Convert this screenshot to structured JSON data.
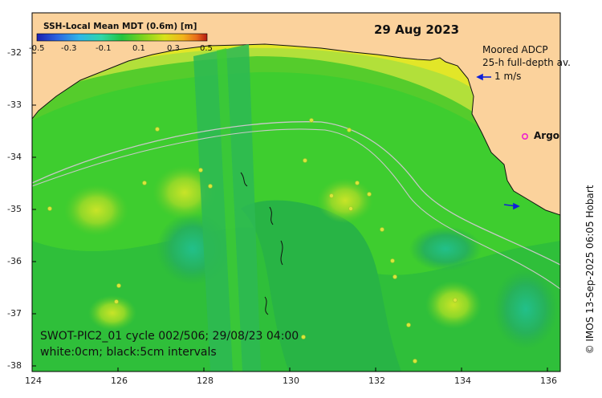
{
  "map": {
    "date": "29 Aug 2023",
    "colorbar": {
      "title": "SSH-Local Mean MDT (0.6m) [m]",
      "tick_labels": [
        "-0.5",
        "-0.3",
        "-0.1",
        "0.1",
        "0.3",
        "0.5"
      ],
      "colors": [
        "#1b1fb0",
        "#2b64e0",
        "#2fb6e8",
        "#2fd6a8",
        "#22c43e",
        "#7cd21e",
        "#d8e21a",
        "#f2b21a",
        "#e86a1a",
        "#b41a12"
      ]
    },
    "legend": {
      "adcp_title": "Moored ADCP",
      "adcp_subtitle": "25-h full-depth av.",
      "arrow_label": "1 m/s",
      "argo_symbol": "o",
      "argo_label": "Argo"
    },
    "annotation_line1": "SWOT-PIC2_01 cycle 002/506; 29/08/23 04:00",
    "annotation_line2": "white:0cm; black:5cm intervals",
    "copyright": "© IMOS 13-Sep-2025 06:05 Hobart",
    "x_ticks": [
      "124",
      "126",
      "128",
      "130",
      "132",
      "134",
      "136"
    ],
    "y_ticks": [
      "-32",
      "-33",
      "-34",
      "-35",
      "-36",
      "-37",
      "-38"
    ],
    "lon_range": [
      124,
      136.8
    ],
    "lat_range": [
      -38.2,
      -31.3
    ],
    "colors": {
      "land": "#fbd29c",
      "ocean_mid": "#3ecd2f",
      "ocean_dark": "#27b048",
      "coastal_yellow": "#e2e628",
      "coastal_lime": "#b2e03a",
      "argo": "#ee22cc",
      "arrow": "#1020d8"
    }
  }
}
